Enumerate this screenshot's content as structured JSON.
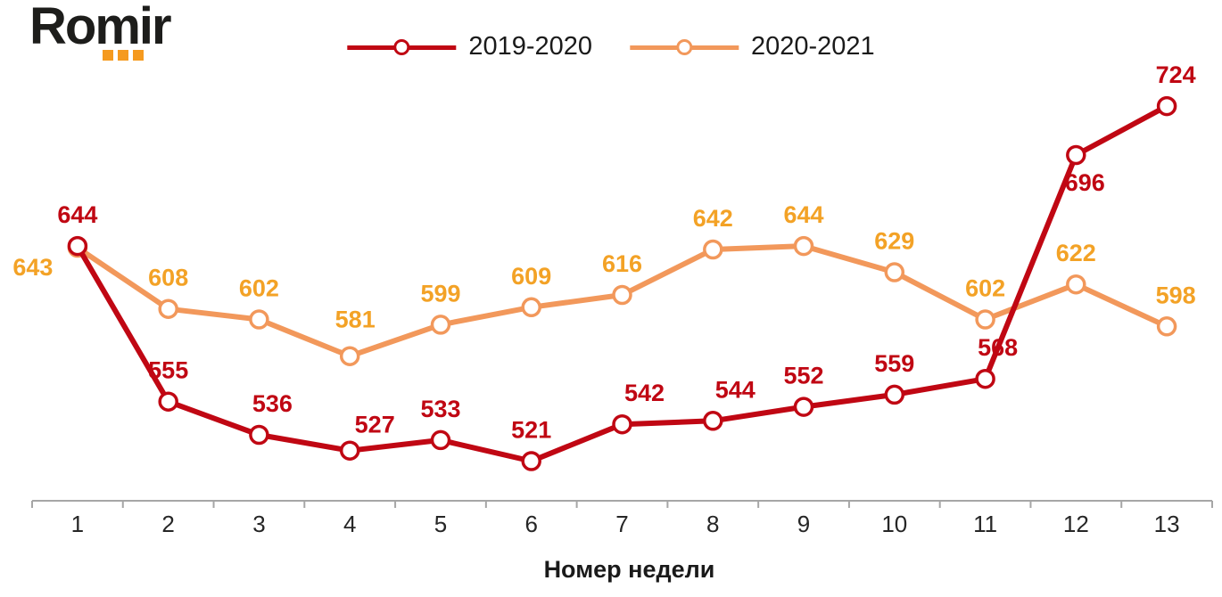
{
  "logo": {
    "text": "Romir",
    "dots_color": "#F59A1F"
  },
  "legend": {
    "items": [
      {
        "label": "2019-2020"
      },
      {
        "label": "2020-2021"
      }
    ]
  },
  "chart_data": {
    "type": "line",
    "title": "",
    "xlabel": "Номер недели",
    "ylabel": "",
    "x": [
      1,
      2,
      3,
      4,
      5,
      6,
      7,
      8,
      9,
      10,
      11,
      12,
      13
    ],
    "series": [
      {
        "name": "2019-2020",
        "color": "#C00713",
        "label_color": "#C00713",
        "values": [
          644,
          555,
          536,
          527,
          533,
          521,
          542,
          544,
          552,
          559,
          568,
          696,
          724
        ]
      },
      {
        "name": "2020-2021",
        "color": "#F2985B",
        "label_color": "#F3A226",
        "values": [
          643,
          608,
          602,
          581,
          599,
          609,
          616,
          642,
          644,
          629,
          602,
          622,
          598
        ]
      }
    ],
    "data_labels": true,
    "markers": "circle-open",
    "grid": false,
    "y_axis_visible": false,
    "legend_position": "top-center",
    "x_axis": {
      "line_color": "#A6A6A6",
      "tick_label_color": "#262626"
    }
  }
}
